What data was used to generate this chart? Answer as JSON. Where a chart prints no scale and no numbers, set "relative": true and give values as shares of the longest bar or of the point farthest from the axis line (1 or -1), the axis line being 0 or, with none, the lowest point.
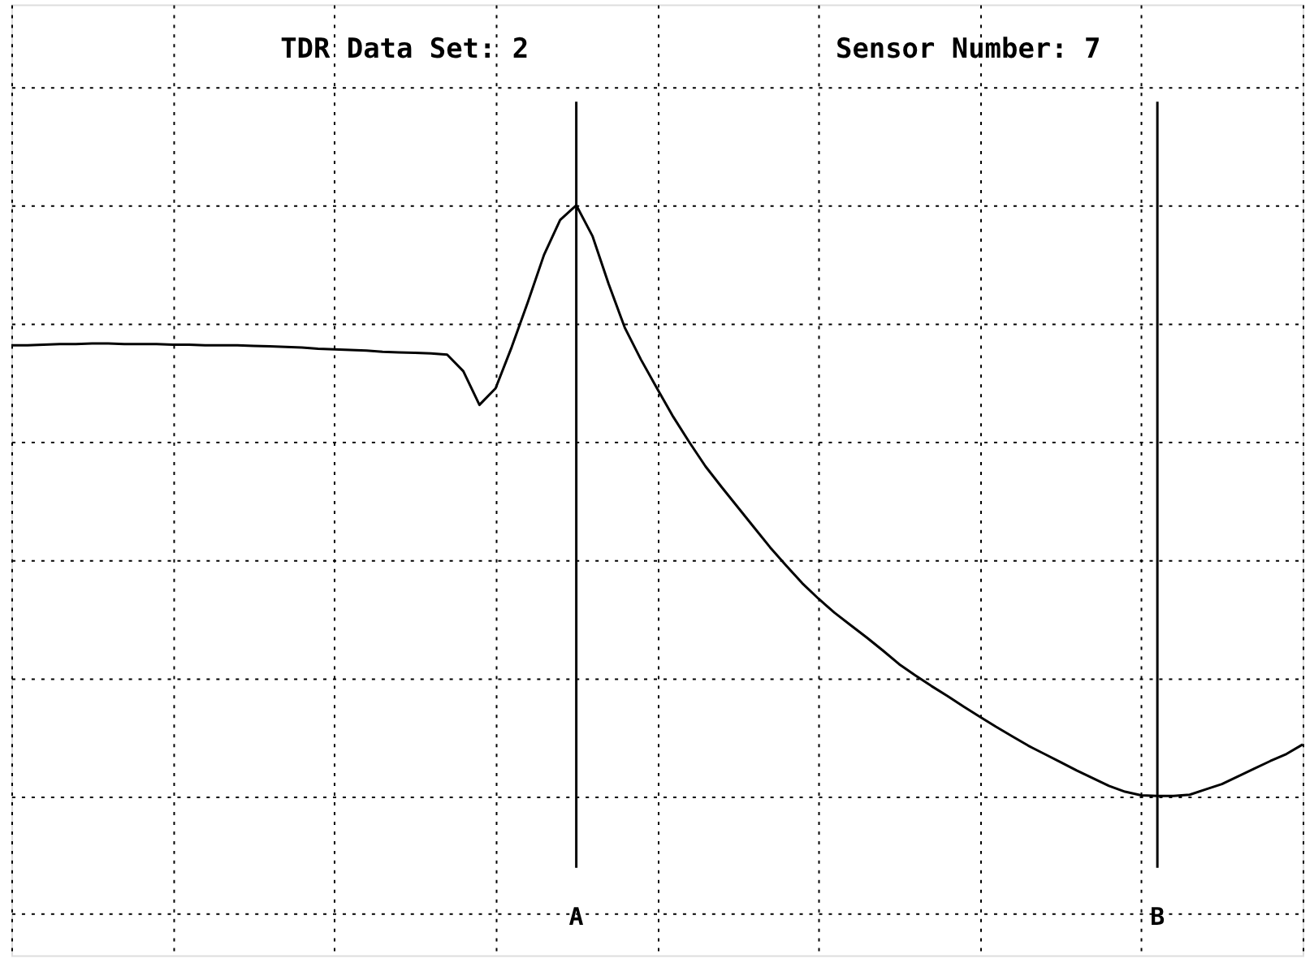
{
  "chart_data": {
    "type": "line",
    "relative": true,
    "grid": true,
    "marker": "none",
    "line_style": "solid",
    "annotations": [
      "TDR Data Set: 2",
      "Sensor Number: 7",
      "A",
      "B"
    ],
    "categories": [
      null,
      null,
      null,
      null,
      null,
      null,
      null,
      null,
      null,
      null,
      null,
      null,
      null,
      null,
      null,
      null,
      null,
      null,
      null,
      null,
      null,
      null,
      null,
      null,
      null,
      null,
      null,
      null,
      null,
      null,
      null,
      null,
      null,
      null,
      null,
      null,
      null,
      null,
      null,
      null,
      null,
      null,
      null,
      null,
      null,
      null,
      null,
      null,
      null,
      null,
      null,
      null,
      null,
      null,
      null,
      null,
      null,
      null,
      null,
      null,
      null,
      null,
      null,
      null,
      null,
      null,
      null,
      null,
      null,
      null,
      null,
      null,
      null,
      null,
      null,
      null,
      null,
      null,
      null,
      null,
      null
    ],
    "series": [
      {
        "color": "#000000",
        "values": [
          0.763,
          0.763,
          0.764,
          0.765,
          0.765,
          0.766,
          0.766,
          0.765,
          0.765,
          0.765,
          0.764,
          0.764,
          0.763,
          0.763,
          0.763,
          0.762,
          0.761,
          0.76,
          0.759,
          0.757,
          0.756,
          0.755,
          0.754,
          0.752,
          0.751,
          0.75,
          0.749,
          0.747,
          0.719,
          0.662,
          0.69,
          0.76,
          0.836,
          0.916,
          0.975,
          1.0,
          0.948,
          0.867,
          0.793,
          0.739,
          0.69,
          0.642,
          0.599,
          0.558,
          0.523,
          0.489,
          0.455,
          0.421,
          0.39,
          0.36,
          0.334,
          0.31,
          0.289,
          0.268,
          0.246,
          0.223,
          0.204,
          0.186,
          0.169,
          0.151,
          0.134,
          0.117,
          0.101,
          0.085,
          0.071,
          0.057,
          0.043,
          0.03,
          0.017,
          0.007,
          0.001,
          0,
          0,
          0.002,
          0.011,
          0.02,
          0.033,
          0.046,
          0.059,
          0.071,
          0.087
        ]
      }
    ]
  }
}
